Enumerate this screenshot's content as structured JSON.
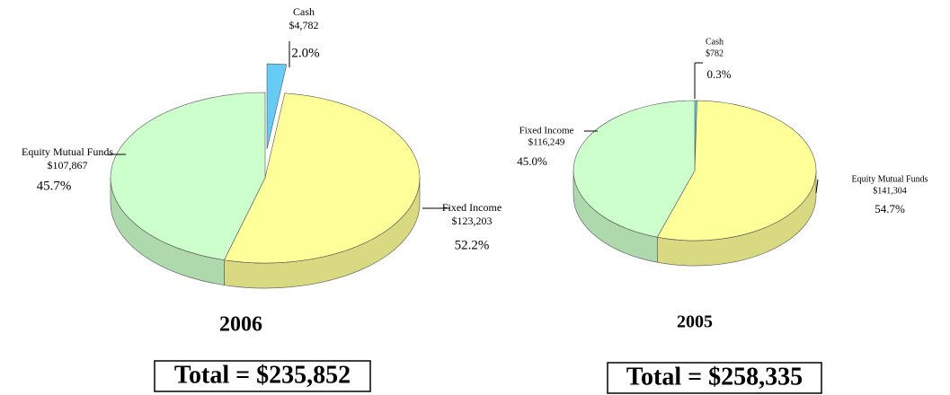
{
  "chart_data": [
    {
      "type": "pie3d",
      "title": "2006",
      "total_label": "Total = $235,852",
      "categories": [
        "Cash",
        "Fixed Income",
        "Equity Mutual Funds"
      ],
      "values": [
        4782,
        123203,
        107867
      ],
      "value_labels": [
        "$4,782",
        "$123,203",
        "$107,867"
      ],
      "percent_values": [
        2.0,
        52.2,
        45.7
      ],
      "percent_labels": [
        "2.0%",
        "52.2%",
        "45.7%"
      ],
      "colors": [
        "#66ccf5",
        "#ffff99",
        "#ccffcc"
      ]
    },
    {
      "type": "pie3d",
      "title": "2005",
      "total_label": "Total = $258,335",
      "categories": [
        "Cash",
        "Equity Mutual Funds",
        "Fixed Income"
      ],
      "values": [
        782,
        141304,
        116249
      ],
      "value_labels": [
        "$782",
        "$141,304",
        "$116,249"
      ],
      "percent_values": [
        0.3,
        54.7,
        45.0
      ],
      "percent_labels": [
        "0.3%",
        "54.7%",
        "45.0%"
      ],
      "colors": [
        "#66ccf5",
        "#ffff99",
        "#ccffcc"
      ]
    }
  ]
}
